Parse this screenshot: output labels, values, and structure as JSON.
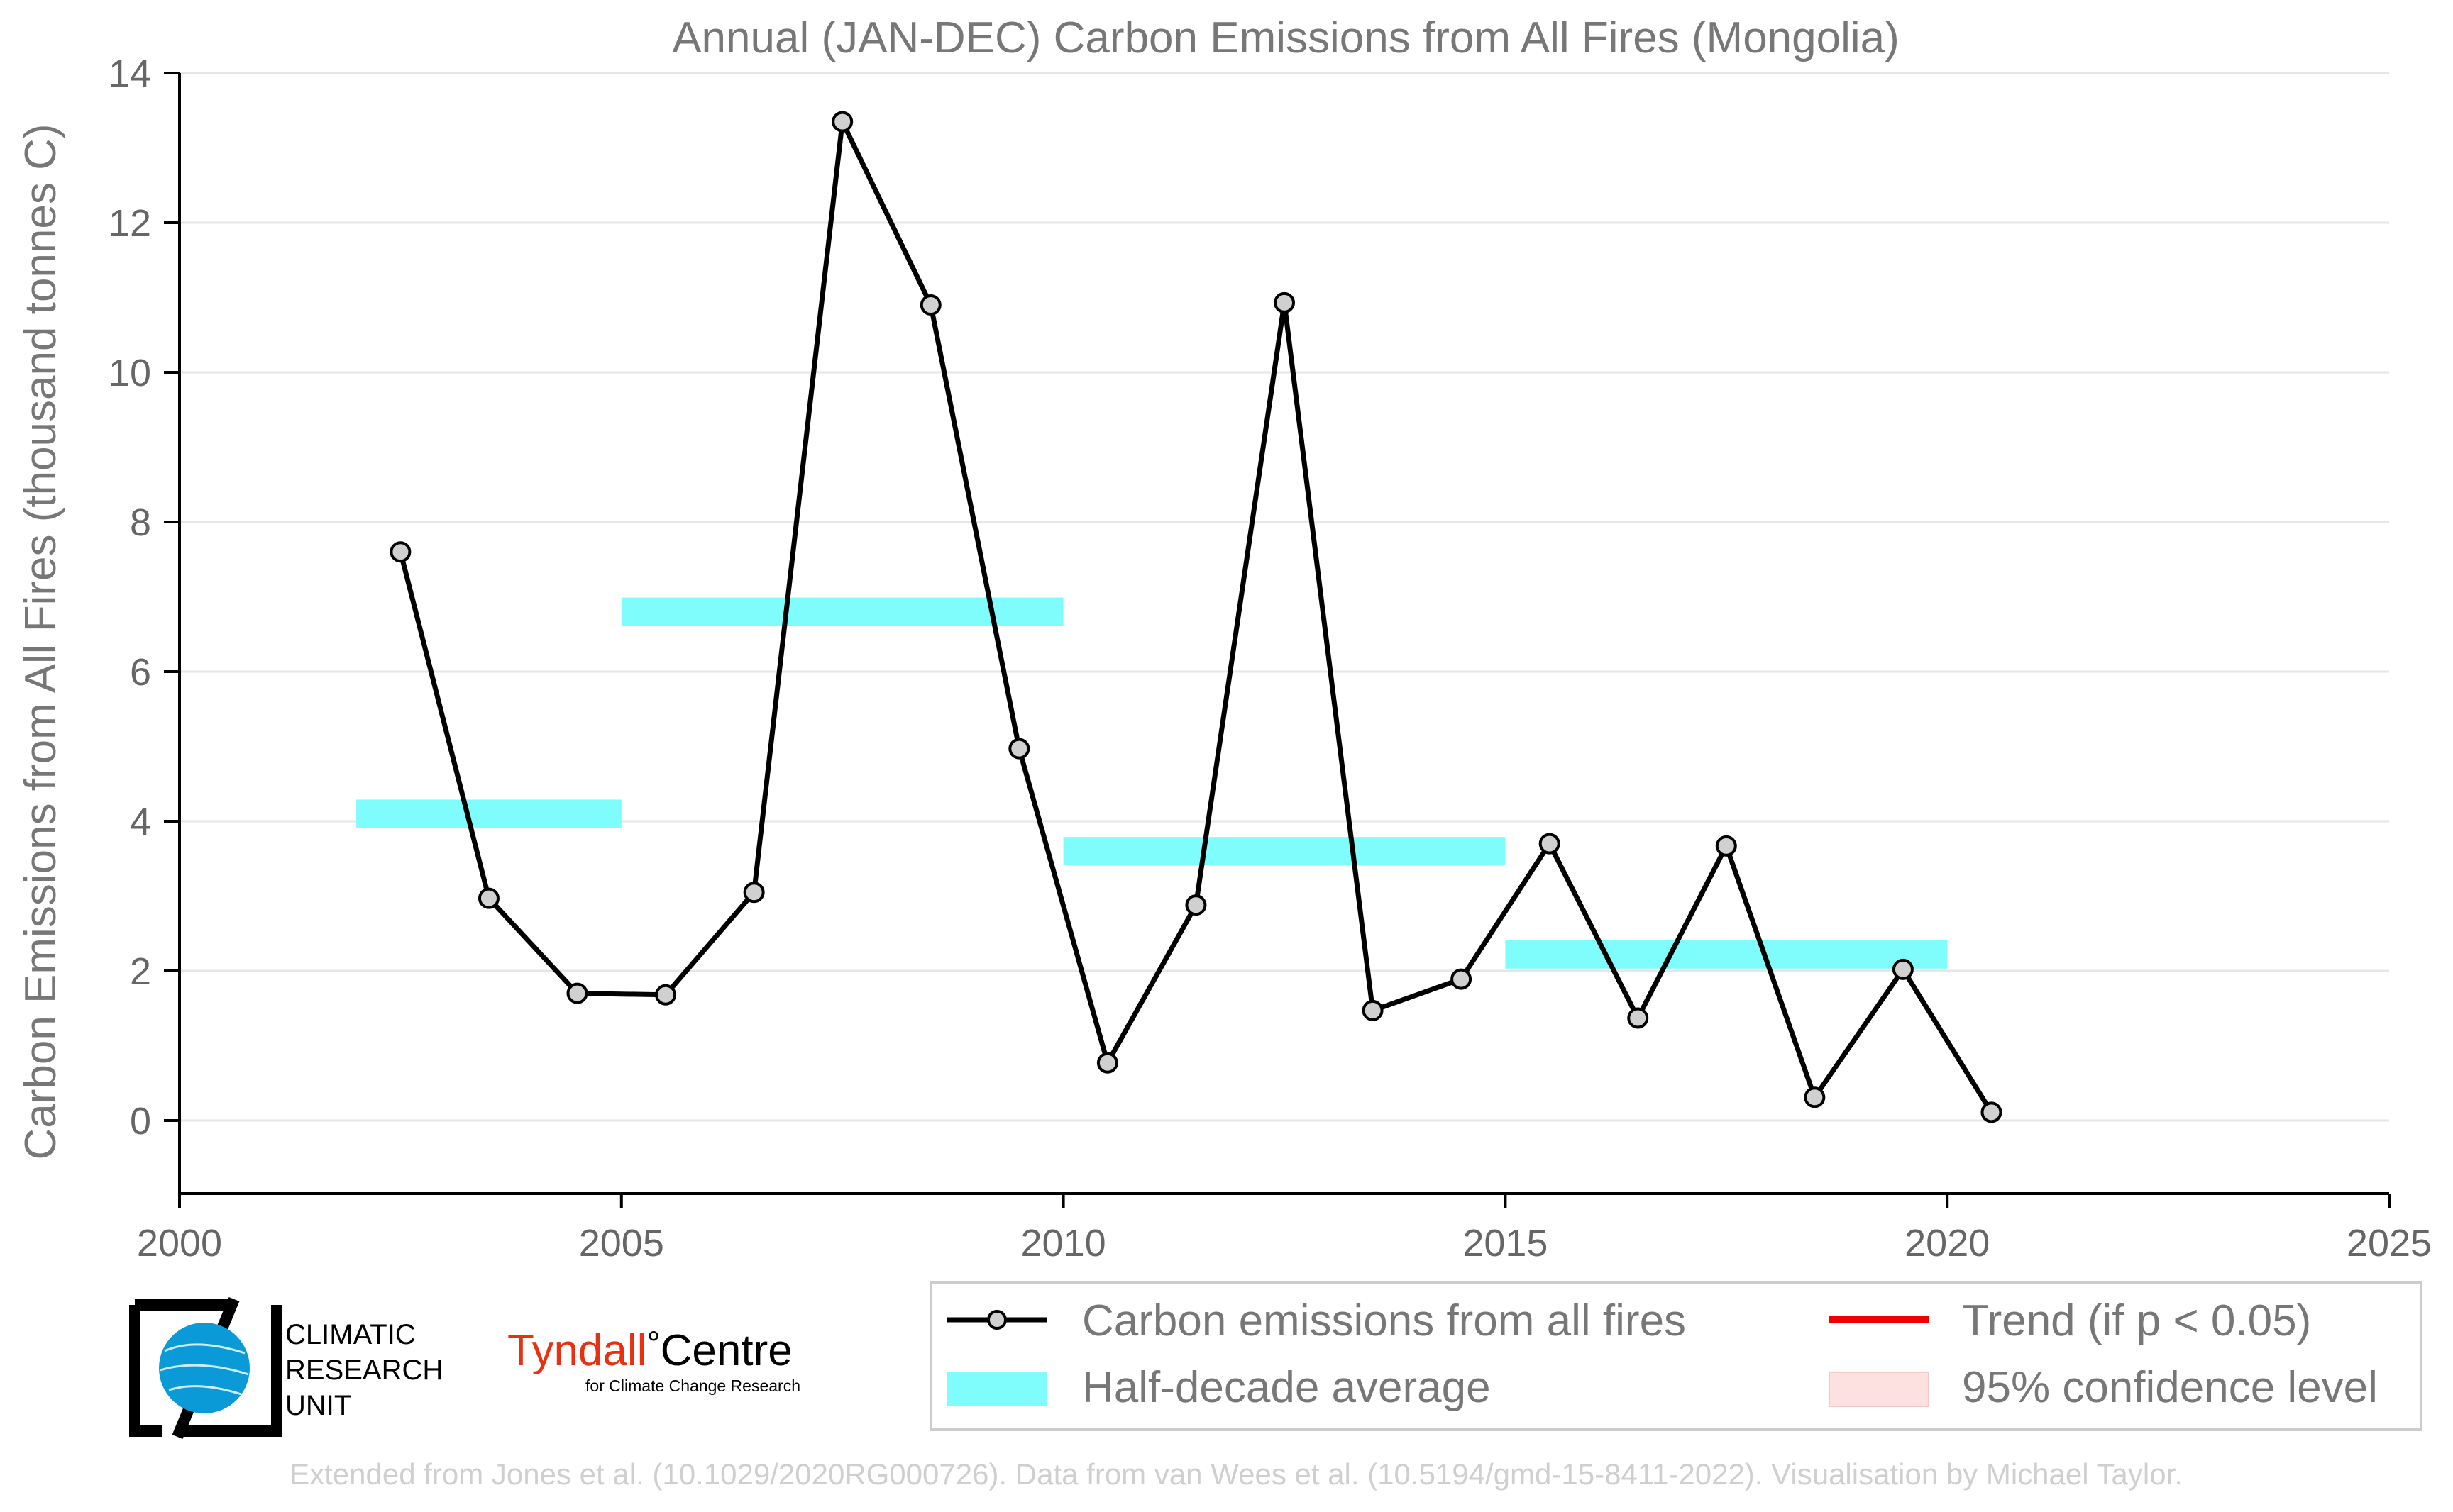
{
  "chart_data": {
    "type": "line",
    "title": "Annual (JAN-DEC) Carbon Emissions from All Fires (Mongolia)",
    "ylabel": "Carbon Emissions from All Fires (thousand tonnes C)",
    "xlabel": "",
    "xlim": [
      2000,
      2025
    ],
    "ylim": [
      -1,
      14
    ],
    "xticks": [
      2000,
      2005,
      2010,
      2015,
      2020,
      2025
    ],
    "yticks": [
      0,
      2,
      4,
      6,
      8,
      10,
      12,
      14
    ],
    "grid": "horizontal",
    "legend_position": "bottom-right",
    "series": [
      {
        "name": "Carbon emissions from all fires",
        "color": "#000000",
        "marker_fill": "#d0d0d0",
        "points": [
          {
            "x": 2002.5,
            "y": 7.6
          },
          {
            "x": 2003.5,
            "y": 2.97
          },
          {
            "x": 2004.5,
            "y": 1.7
          },
          {
            "x": 2005.5,
            "y": 1.68
          },
          {
            "x": 2006.5,
            "y": 3.05
          },
          {
            "x": 2007.5,
            "y": 13.35
          },
          {
            "x": 2008.5,
            "y": 10.9
          },
          {
            "x": 2009.5,
            "y": 4.97
          },
          {
            "x": 2010.5,
            "y": 0.77
          },
          {
            "x": 2011.5,
            "y": 2.88
          },
          {
            "x": 2012.5,
            "y": 10.93
          },
          {
            "x": 2013.5,
            "y": 1.47
          },
          {
            "x": 2014.5,
            "y": 1.89
          },
          {
            "x": 2015.5,
            "y": 3.7
          },
          {
            "x": 2016.5,
            "y": 1.37
          },
          {
            "x": 2017.5,
            "y": 3.67
          },
          {
            "x": 2018.5,
            "y": 0.31
          },
          {
            "x": 2019.5,
            "y": 2.02
          },
          {
            "x": 2020.5,
            "y": 0.11
          }
        ]
      },
      {
        "name": "Half-decade average",
        "color": "#7ffcfc",
        "segments": [
          {
            "x_start": 2002,
            "x_end": 2005,
            "y": 4.1
          },
          {
            "x_start": 2005,
            "x_end": 2010,
            "y": 6.8
          },
          {
            "x_start": 2010,
            "x_end": 2015,
            "y": 3.6
          },
          {
            "x_start": 2015,
            "x_end": 2020,
            "y": 2.22
          }
        ]
      }
    ],
    "legend": [
      {
        "label": "Carbon emissions from all fires",
        "kind": "line-marker",
        "color": "#000000"
      },
      {
        "label": "Trend (if p < 0.05)",
        "kind": "line",
        "color": "#ee0000"
      },
      {
        "label": "Half-decade average",
        "kind": "band",
        "color": "#7ffcfc"
      },
      {
        "label": "95% confidence level",
        "kind": "band",
        "color": "#fde0e0"
      }
    ]
  },
  "logos": {
    "cru": {
      "line1": "CLIMATIC",
      "line2": "RESEARCH",
      "line3": "UNIT"
    },
    "tyndall": {
      "word1": "Tyndall",
      "degree": "°",
      "word2": "Centre",
      "tagline": "for Climate Change Research"
    }
  },
  "credit": "Extended from Jones et al. (10.1029/2020RG000726). Data from van Wees et al. (10.5194/gmd-15-8411-2022). Visualisation by Michael Taylor."
}
